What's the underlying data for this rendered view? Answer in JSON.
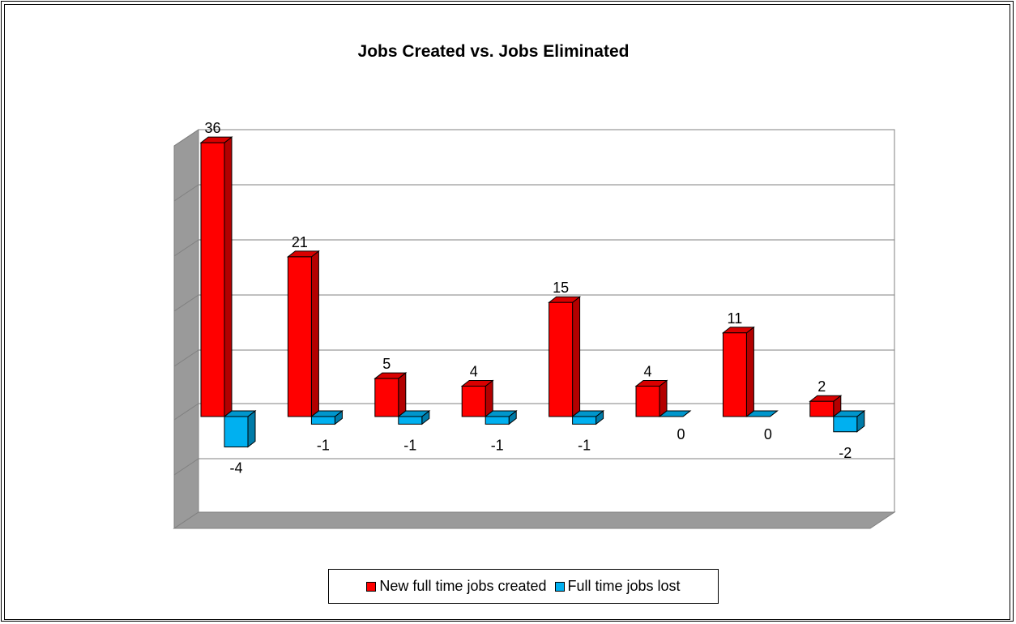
{
  "chart_data": {
    "type": "bar",
    "title": "Jobs Created vs. Jobs Eliminated",
    "categories": [
      "",
      "",
      "",
      "",
      "",
      "",
      "",
      ""
    ],
    "series": [
      {
        "name": "New full time jobs created",
        "color": "#ff0000",
        "values": [
          36,
          21,
          5,
          4,
          15,
          4,
          11,
          2
        ]
      },
      {
        "name": "Full time jobs lost",
        "color": "#00b0f0",
        "values": [
          -4,
          -1,
          -1,
          -1,
          -1,
          0,
          0,
          -2
        ]
      }
    ],
    "style": "3d-clustered-column",
    "grid": true,
    "legend_position": "bottom",
    "data_labels": true
  }
}
